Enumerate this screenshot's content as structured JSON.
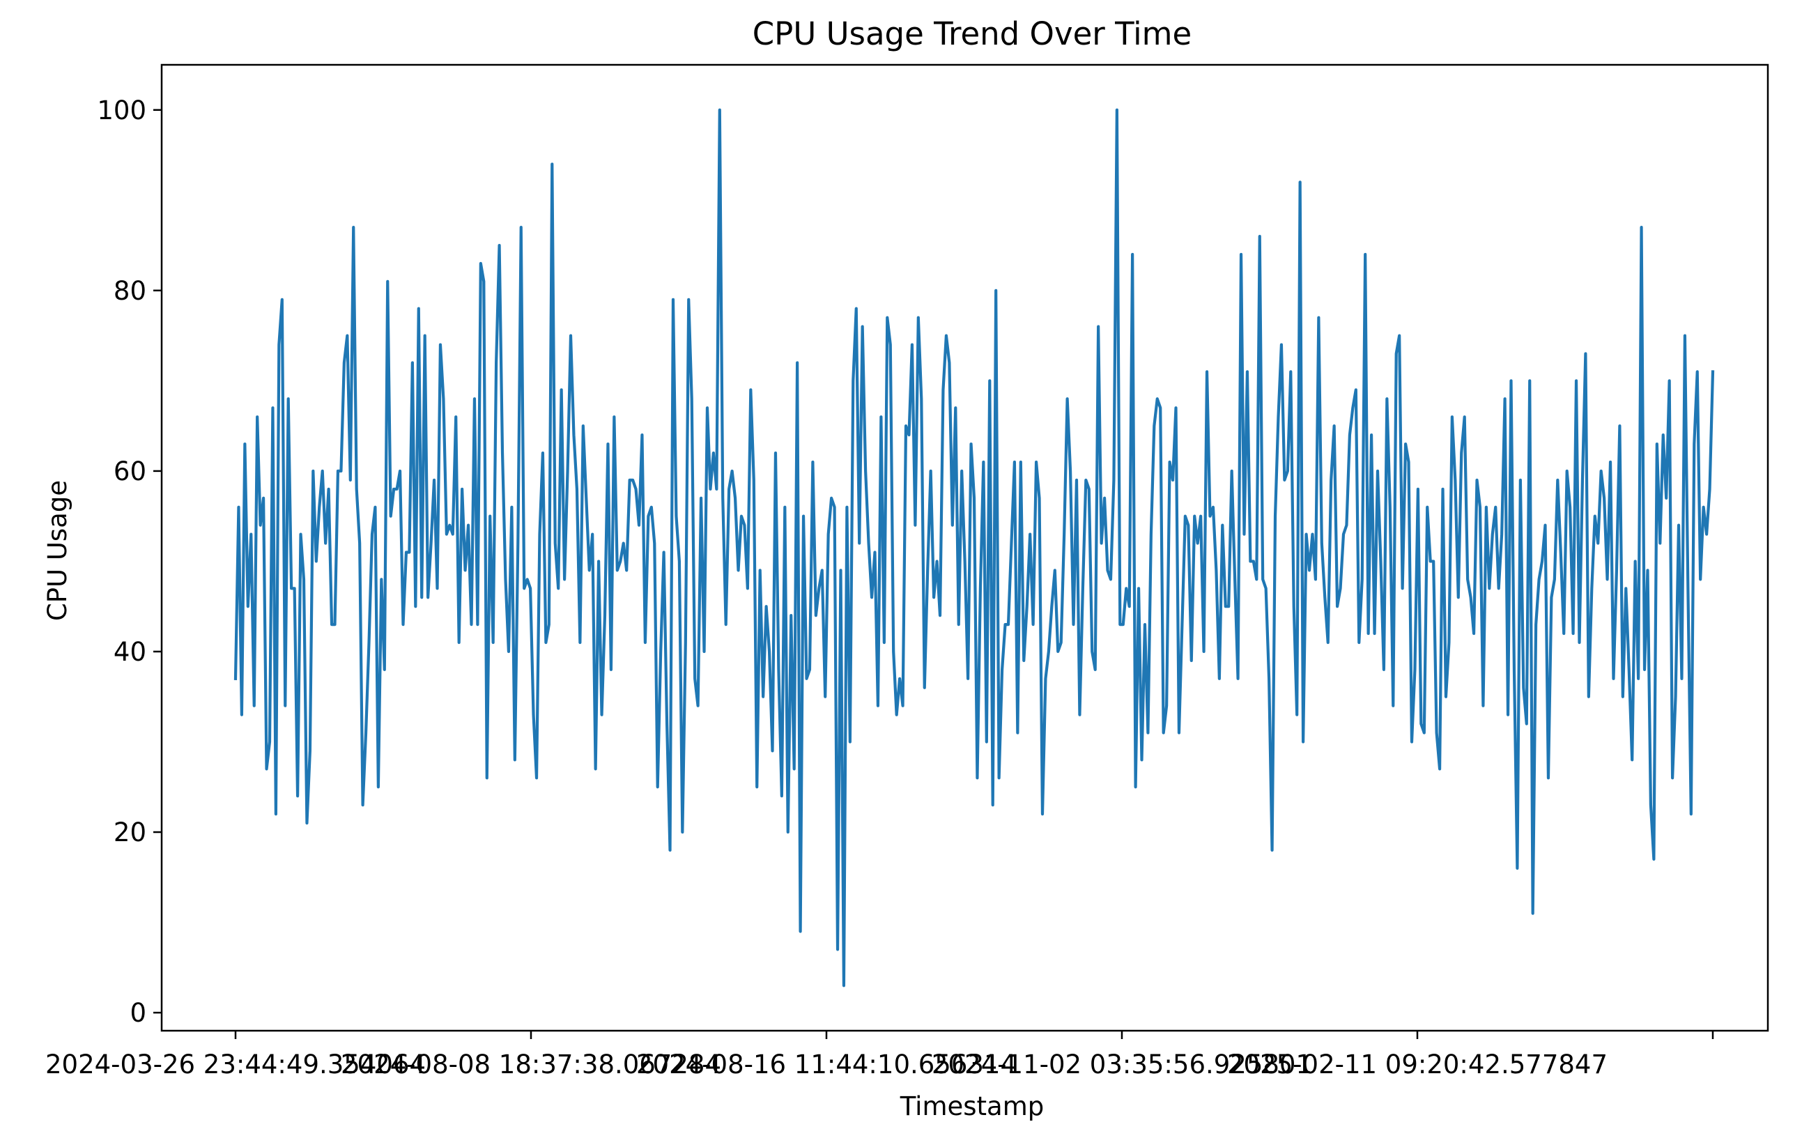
{
  "chart_data": {
    "type": "line",
    "title": "CPU Usage Trend Over Time",
    "xlabel": "Timestamp",
    "ylabel": "CPU Usage",
    "x_ticks": [
      "2024-03-26 23:44:49.354064",
      "2024-08-08 18:37:38.067284",
      "2024-08-16 11:44:10.656314",
      "2024-11-02 03:35:56.925801",
      "2025-02-11 09:20:42.577847",
      ""
    ],
    "y_ticks": [
      0,
      20,
      40,
      60,
      80,
      100
    ],
    "ylim": [
      -2,
      105
    ],
    "grid": false,
    "series": [
      {
        "color": "#1f77b4",
        "values": [
          37,
          56,
          33,
          63,
          45,
          53,
          34,
          66,
          54,
          57,
          27,
          30,
          67,
          22,
          74,
          79,
          34,
          68,
          47,
          47,
          24,
          53,
          48,
          21,
          29,
          60,
          50,
          56,
          60,
          52,
          58,
          43,
          43,
          60,
          60,
          72,
          75,
          59,
          87,
          58,
          52,
          23,
          31,
          41,
          53,
          56,
          25,
          48,
          38,
          81,
          55,
          58,
          58,
          60,
          43,
          51,
          51,
          72,
          45,
          78,
          46,
          75,
          46,
          52,
          59,
          47,
          74,
          68,
          53,
          54,
          53,
          66,
          41,
          58,
          49,
          54,
          43,
          68,
          43,
          83,
          81,
          26,
          55,
          41,
          72,
          85,
          62,
          48,
          40,
          56,
          28,
          52,
          87,
          47,
          48,
          47,
          33,
          26,
          53,
          62,
          41,
          43,
          94,
          52,
          47,
          69,
          48,
          60,
          75,
          64,
          58,
          41,
          65,
          57,
          49,
          53,
          27,
          50,
          33,
          44,
          63,
          38,
          66,
          49,
          50,
          52,
          49,
          59,
          59,
          58,
          54,
          64,
          41,
          55,
          56,
          52,
          25,
          40,
          51,
          32,
          18,
          79,
          55,
          50,
          20,
          41,
          79,
          68,
          37,
          34,
          57,
          40,
          67,
          58,
          62,
          58,
          100,
          57,
          43,
          58,
          60,
          57,
          49,
          55,
          54,
          47,
          69,
          59,
          25,
          49,
          35,
          45,
          40,
          29,
          62,
          38,
          24,
          56,
          20,
          44,
          27,
          72,
          9,
          55,
          37,
          38,
          61,
          44,
          47,
          49,
          35,
          53,
          57,
          56,
          7,
          49,
          3,
          56,
          30,
          70,
          78,
          52,
          76,
          60,
          52,
          46,
          51,
          34,
          66,
          41,
          77,
          74,
          40,
          33,
          37,
          34,
          65,
          64,
          74,
          54,
          77,
          68,
          36,
          49,
          60,
          46,
          50,
          44,
          69,
          75,
          72,
          54,
          67,
          43,
          60,
          50,
          37,
          63,
          57,
          26,
          47,
          61,
          30,
          70,
          23,
          80,
          26,
          38,
          43,
          43,
          52,
          61,
          31,
          61,
          39,
          45,
          53,
          43,
          61,
          57,
          22,
          37,
          40,
          45,
          49,
          40,
          41,
          53,
          68,
          60,
          43,
          59,
          33,
          47,
          59,
          58,
          40,
          38,
          76,
          52,
          57,
          49,
          48,
          59,
          100,
          43,
          43,
          47,
          45,
          84,
          25,
          47,
          28,
          43,
          31,
          53,
          65,
          68,
          67,
          31,
          34,
          61,
          59,
          67,
          31,
          43,
          55,
          54,
          39,
          55,
          52,
          55,
          40,
          71,
          55,
          56,
          49,
          37,
          54,
          45,
          45,
          60,
          48,
          37,
          84,
          53,
          71,
          50,
          50,
          48,
          86,
          48,
          47,
          37,
          18,
          55,
          66,
          74,
          59,
          60,
          71,
          45,
          33,
          92,
          30,
          53,
          49,
          53,
          48,
          77,
          52,
          46,
          41,
          59,
          65,
          45,
          47,
          53,
          54,
          64,
          67,
          69,
          41,
          48,
          84,
          42,
          64,
          42,
          60,
          50,
          38,
          68,
          56,
          34,
          73,
          75,
          47,
          63,
          61,
          30,
          38,
          58,
          32,
          31,
          56,
          50,
          50,
          31,
          27,
          58,
          35,
          41,
          66,
          59,
          46,
          62,
          66,
          48,
          46,
          42,
          59,
          56,
          34,
          56,
          47,
          53,
          56,
          47,
          53,
          68,
          33,
          70,
          38,
          16,
          59,
          36,
          32,
          70,
          11,
          43,
          48,
          50,
          54,
          26,
          46,
          48,
          59,
          51,
          42,
          60,
          56,
          42,
          70,
          41,
          59,
          73,
          35,
          47,
          55,
          52,
          60,
          57,
          48,
          61,
          37,
          49,
          65,
          35,
          47,
          38,
          28,
          50,
          37,
          87,
          38,
          49,
          23,
          17,
          63,
          52,
          64,
          57,
          70,
          26,
          35,
          54,
          37,
          75,
          47,
          22,
          63,
          71,
          48,
          56,
          53,
          58,
          71
        ]
      }
    ]
  }
}
